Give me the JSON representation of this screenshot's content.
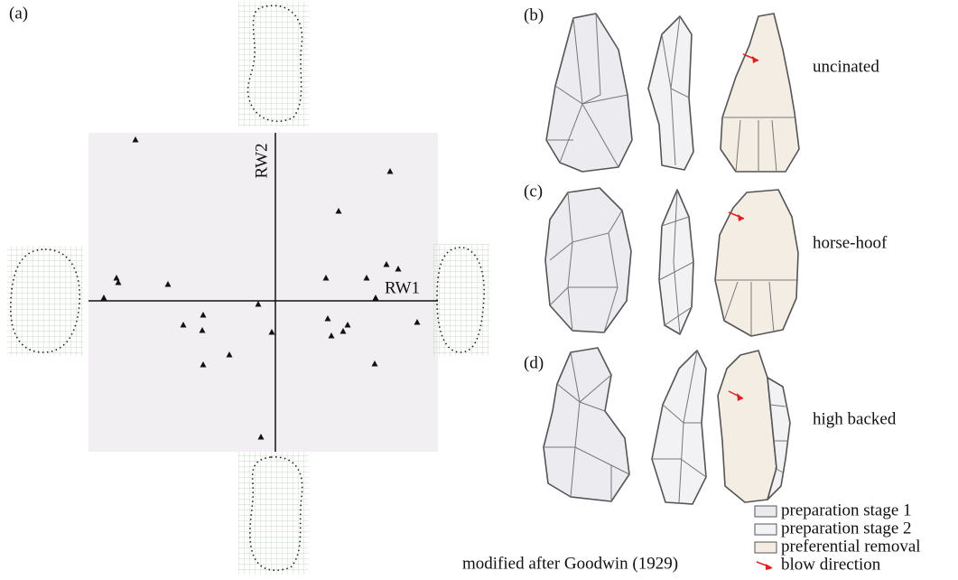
{
  "chart_data": {
    "type": "scatter",
    "label": "(a)",
    "x_label": "RW1",
    "y_label": "RW2",
    "x": [
      -1.55,
      1.27,
      0.7,
      -1.76,
      -1.74,
      -1.19,
      -1.9,
      0.56,
      1.01,
      1.23,
      1.36,
      1.11,
      -0.19,
      1.57,
      -1.02,
      -0.8,
      -0.81,
      -0.04,
      0.58,
      0.8,
      0.75,
      0.62,
      -0.51,
      -0.8,
      1.1,
      -0.16
    ],
    "values": [
      1.78,
      1.43,
      0.99,
      0.25,
      0.2,
      0.18,
      0.03,
      0.25,
      0.25,
      0.4,
      0.35,
      0.03,
      -0.04,
      -0.24,
      -0.27,
      -0.16,
      -0.33,
      -0.35,
      -0.2,
      -0.27,
      -0.34,
      -0.39,
      -0.6,
      -0.71,
      -0.7,
      -1.51
    ],
    "xlim": [
      -2.07,
      1.8
    ],
    "ylim": [
      -1.67,
      1.86
    ],
    "color": "#111111"
  },
  "panels": [
    {
      "label": "(b)",
      "name": "uncinated"
    },
    {
      "label": "(c)",
      "name": "horse-hoof"
    },
    {
      "label": "(d)",
      "name": "high backed"
    }
  ],
  "legend": [
    "preparation stage 1",
    "preparation stage 2",
    "preferential removal",
    "blow direction"
  ],
  "credit": "modified after Goodwin (1929)"
}
